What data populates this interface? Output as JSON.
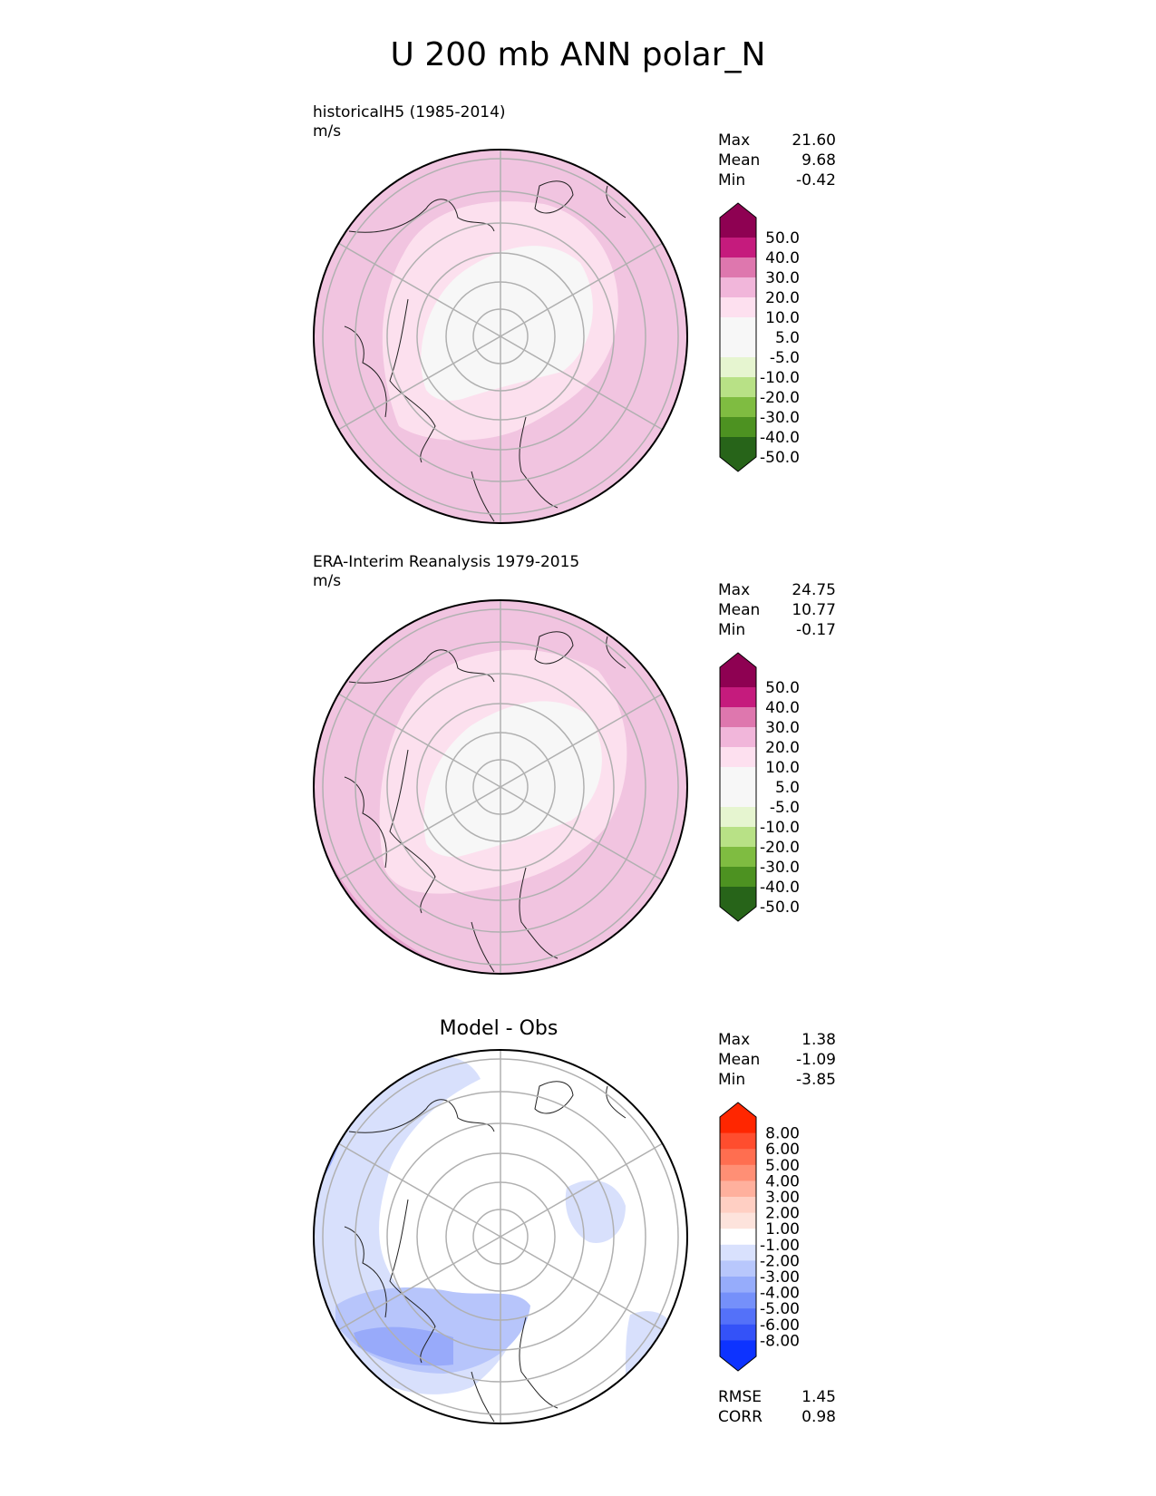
{
  "title": "U 200 mb ANN polar_N",
  "chart_data": [
    {
      "type": "heatmap",
      "projection": "north-polar-stereographic",
      "title": "historicalH5 (1985-2014)",
      "units": "m/s",
      "stats": [
        {
          "label": "Max",
          "value": "21.60"
        },
        {
          "label": "Mean",
          "value": "9.68"
        },
        {
          "label": "Min",
          "value": "-0.42"
        }
      ],
      "colorbar": {
        "levels": [
          "50.0",
          "40.0",
          "30.0",
          "20.0",
          "10.0",
          "5.0",
          "-5.0",
          "-10.0",
          "-20.0",
          "-30.0",
          "-40.0",
          "-50.0"
        ],
        "colors": [
          "#8e0152",
          "#c51b7d",
          "#de77ae",
          "#f1b6da",
          "#fde0ef",
          "#f7f7f7",
          "#f7f7f7",
          "#e6f5d0",
          "#b8e186",
          "#7fbc41",
          "#4d9221",
          "#276419"
        ],
        "extend": "both"
      }
    },
    {
      "type": "heatmap",
      "projection": "north-polar-stereographic",
      "title": "ERA-Interim Reanalysis 1979-2015",
      "units": "m/s",
      "stats": [
        {
          "label": "Max",
          "value": "24.75"
        },
        {
          "label": "Mean",
          "value": "10.77"
        },
        {
          "label": "Min",
          "value": "-0.17"
        }
      ],
      "colorbar": {
        "levels": [
          "50.0",
          "40.0",
          "30.0",
          "20.0",
          "10.0",
          "5.0",
          "-5.0",
          "-10.0",
          "-20.0",
          "-30.0",
          "-40.0",
          "-50.0"
        ],
        "colors": [
          "#8e0152",
          "#c51b7d",
          "#de77ae",
          "#f1b6da",
          "#fde0ef",
          "#f7f7f7",
          "#f7f7f7",
          "#e6f5d0",
          "#b8e186",
          "#7fbc41",
          "#4d9221",
          "#276419"
        ],
        "extend": "both"
      }
    },
    {
      "type": "heatmap",
      "projection": "north-polar-stereographic",
      "title": "Model - Obs",
      "stats": [
        {
          "label": "Max",
          "value": "1.38"
        },
        {
          "label": "Mean",
          "value": "-1.09"
        },
        {
          "label": "Min",
          "value": "-3.85"
        }
      ],
      "metrics": [
        {
          "label": "RMSE",
          "value": "1.45"
        },
        {
          "label": "CORR",
          "value": "0.98"
        }
      ],
      "colorbar": {
        "levels": [
          "8.00",
          "6.00",
          "5.00",
          "4.00",
          "3.00",
          "2.00",
          "1.00",
          "-1.00",
          "-2.00",
          "-3.00",
          "-4.00",
          "-5.00",
          "-6.00",
          "-8.00"
        ],
        "colors": [
          "#ff2600",
          "#ff4d2e",
          "#ff6e50",
          "#ff8f75",
          "#ffb09d",
          "#ffcfc3",
          "#fde3dc",
          "#ffffff",
          "#d9e1fd",
          "#b8c7fc",
          "#96acfb",
          "#7590fa",
          "#5471f9",
          "#3452f8",
          "#0d33ff"
        ],
        "extend": "both"
      }
    }
  ]
}
